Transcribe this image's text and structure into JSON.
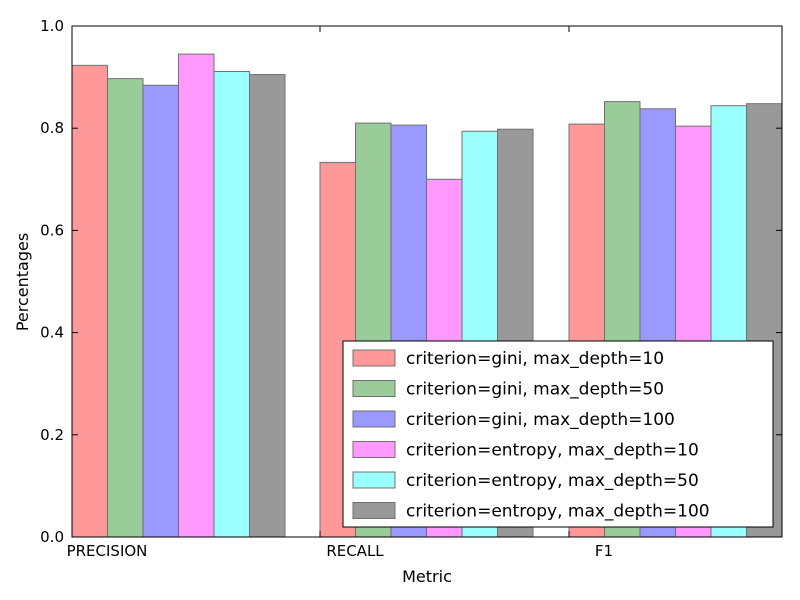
{
  "chart_data": {
    "type": "bar",
    "title": "",
    "xlabel": "Metric",
    "ylabel": "Percentages",
    "ylim": [
      0,
      1.0
    ],
    "yticks": [
      "0.0",
      "0.2",
      "0.4",
      "0.6",
      "0.8",
      "1.0"
    ],
    "categories": [
      "PRECISION",
      "RECALL",
      "F1"
    ],
    "grid": false,
    "legend_position": "bottom-right",
    "series": [
      {
        "name": "criterion=gini, max_depth=10",
        "color": "#ff9999",
        "values": [
          0.923,
          0.733,
          0.808
        ]
      },
      {
        "name": "criterion=gini, max_depth=50",
        "color": "#99cc99",
        "values": [
          0.897,
          0.81,
          0.852
        ]
      },
      {
        "name": "criterion=gini, max_depth=100",
        "color": "#9999ff",
        "values": [
          0.884,
          0.806,
          0.838
        ]
      },
      {
        "name": "criterion=entropy, max_depth=10",
        "color": "#ff99ff",
        "values": [
          0.945,
          0.7,
          0.804
        ]
      },
      {
        "name": "criterion=entropy, max_depth=50",
        "color": "#99ffff",
        "values": [
          0.911,
          0.794,
          0.844
        ]
      },
      {
        "name": "criterion=entropy, max_depth=100",
        "color": "#999999",
        "values": [
          0.905,
          0.798,
          0.848
        ]
      }
    ]
  }
}
